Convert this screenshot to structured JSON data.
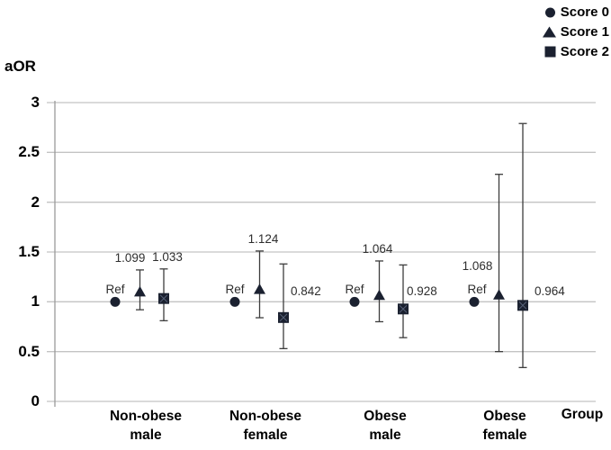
{
  "chart_data": {
    "type": "scatter",
    "title": "",
    "ylabel": "aOR",
    "xlabel": "Group",
    "ylim": [
      0,
      3
    ],
    "yticks": [
      0,
      0.5,
      1,
      1.5,
      2,
      2.5,
      3
    ],
    "ytick_labels": [
      "0",
      "0.5",
      "1",
      "1.5",
      "2",
      "2.5",
      "3"
    ],
    "grid": "horizontal",
    "legend_position": "top-right",
    "categories": [
      "Non-obese\nmale",
      "Non-obese\nfemale",
      "Obese\nmale",
      "Obese\nfemale"
    ],
    "legend": [
      {
        "label": "Score 0",
        "marker": "circle"
      },
      {
        "label": "Score 1",
        "marker": "triangle"
      },
      {
        "label": "Score 2",
        "marker": "square"
      }
    ],
    "series": [
      {
        "name": "Score 0",
        "marker": "circle",
        "points": [
          {
            "category": "Non-obese male",
            "value": 1.0,
            "label": "Ref",
            "ci_low": null,
            "ci_high": null,
            "label_placement": "above",
            "label_dx": 0
          },
          {
            "category": "Non-obese female",
            "value": 1.0,
            "label": "Ref",
            "ci_low": null,
            "ci_high": null,
            "label_placement": "above",
            "label_dx": 0
          },
          {
            "category": "Obese male",
            "value": 1.0,
            "label": "Ref",
            "ci_low": null,
            "ci_high": null,
            "label_placement": "above",
            "label_dx": 0
          },
          {
            "category": "Obese female",
            "value": 1.0,
            "label": "Ref",
            "ci_low": null,
            "ci_high": null,
            "label_placement": "above",
            "label_dx": 3
          }
        ]
      },
      {
        "name": "Score 1",
        "marker": "triangle",
        "points": [
          {
            "category": "Non-obese male",
            "value": 1.099,
            "label": "1.099",
            "ci_low": 0.92,
            "ci_high": 1.32,
            "label_placement": "above",
            "label_dx": -11
          },
          {
            "category": "Non-obese female",
            "value": 1.124,
            "label": "1.124",
            "ci_low": 0.84,
            "ci_high": 1.51,
            "label_placement": "above",
            "label_dx": 4
          },
          {
            "category": "Obese male",
            "value": 1.064,
            "label": "1.064",
            "ci_low": 0.8,
            "ci_high": 1.41,
            "label_placement": "above",
            "label_dx": -2
          },
          {
            "category": "Obese female",
            "value": 1.068,
            "label": "1.068",
            "ci_low": 0.5,
            "ci_high": 2.28,
            "label_placement": "above-left",
            "label_dx": -24
          }
        ]
      },
      {
        "name": "Score 2",
        "marker": "square",
        "points": [
          {
            "category": "Non-obese male",
            "value": 1.033,
            "label": "1.033",
            "ci_low": 0.81,
            "ci_high": 1.33,
            "label_placement": "above",
            "label_dx": 4
          },
          {
            "category": "Non-obese female",
            "value": 0.842,
            "label": "0.842",
            "ci_low": 0.53,
            "ci_high": 1.38,
            "label_placement": "right",
            "label_dx": 0
          },
          {
            "category": "Obese male",
            "value": 0.928,
            "label": "0.928",
            "ci_low": 0.64,
            "ci_high": 1.37,
            "label_placement": "right",
            "label_dx": -4
          },
          {
            "category": "Obese female",
            "value": 0.964,
            "label": "0.964",
            "ci_low": 0.34,
            "ci_high": 2.79,
            "label_placement": "right",
            "label_dx": 5
          }
        ]
      }
    ]
  },
  "colors": {
    "marker": "#1b2130",
    "marker_square_cross": "#5a657c",
    "error_bar": "#3d3d3d",
    "gridline": "#c3c3c3",
    "axis_line": "#9a9a9a",
    "data_label_text": "#2e2e2e",
    "axis_text": "#000000",
    "background": "#ffffff"
  }
}
